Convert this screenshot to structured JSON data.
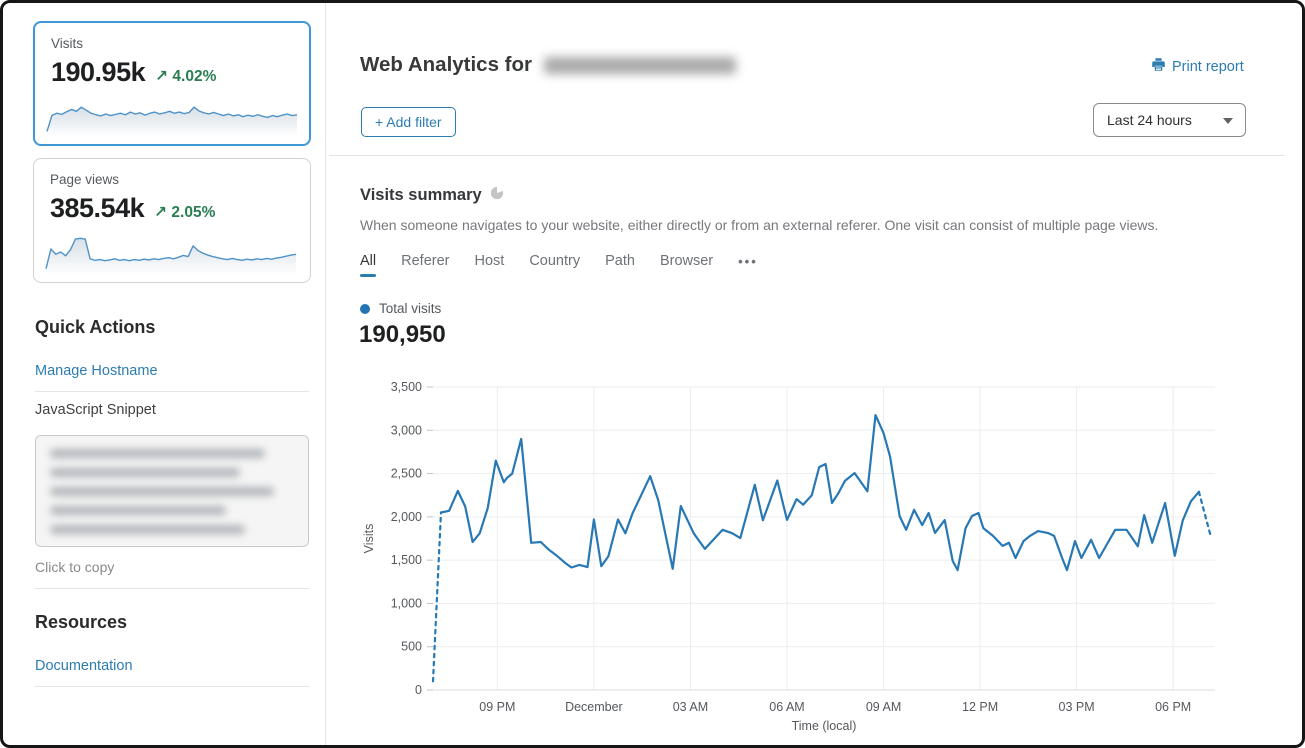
{
  "colors": {
    "accent_blue": "#2c7cb0",
    "selected_card_border": "#3e97d6",
    "chart_line": "#2778b5",
    "positive_green": "#2a7d52",
    "legend_dot": "#2274b5"
  },
  "sidebar": {
    "visits_card": {
      "label": "Visits",
      "value": "190.95k",
      "delta_arrow": "↗",
      "delta": "4.02%",
      "sparkline": [
        4,
        46,
        52,
        49,
        56,
        62,
        57,
        68,
        60,
        52,
        48,
        45,
        50,
        46,
        49,
        52,
        48,
        55,
        50,
        53,
        47,
        52,
        55,
        50,
        53,
        57,
        52,
        55,
        51,
        54,
        68,
        58,
        53,
        50,
        54,
        50,
        46,
        50,
        45,
        48,
        43,
        47,
        44,
        48,
        44,
        41,
        46,
        43,
        47,
        50,
        46,
        48
      ]
    },
    "pageviews_card": {
      "label": "Page views",
      "value": "385.54k",
      "delta_arrow": "↗",
      "delta": "2.05%",
      "sparkline": [
        6,
        58,
        44,
        50,
        40,
        56,
        84,
        86,
        84,
        32,
        28,
        30,
        27,
        29,
        32,
        28,
        30,
        27,
        30,
        28,
        31,
        29,
        32,
        30,
        33,
        35,
        32,
        36,
        41,
        38,
        66,
        54,
        47,
        42,
        38,
        35,
        32,
        30,
        33,
        30,
        28,
        31,
        29,
        32,
        30,
        33,
        31,
        34,
        36,
        39,
        42,
        44
      ]
    },
    "quick_actions_title": "Quick Actions",
    "manage_hostname_link": "Manage Hostname",
    "snippet_label": "JavaScript Snippet",
    "click_to_copy": "Click to copy",
    "resources_title": "Resources",
    "documentation_link": "Documentation"
  },
  "header": {
    "title": "Web Analytics for",
    "print_report_label": "Print report",
    "add_filter_label": "+ Add filter",
    "time_range_value": "Last 24 hours"
  },
  "summary": {
    "title": "Visits summary",
    "description": "When someone navigates to your website, either directly or from an external referer. One visit can consist of multiple page views.",
    "tabs": [
      "All",
      "Referer",
      "Host",
      "Country",
      "Path",
      "Browser"
    ],
    "active_tab": "All",
    "overflow_tabs_label": "•••",
    "legend_label": "Total visits",
    "total_value": "190,950"
  },
  "chart_data": {
    "type": "line",
    "title": "Visits summary",
    "xlabel": "Time (local)",
    "ylabel": "Visits",
    "ylim": [
      0,
      3500
    ],
    "y_tick_step": 500,
    "grid": true,
    "x_unit": "hours_from_chart_start",
    "x_range_hours": [
      0,
      24.3
    ],
    "x_ticks": [
      {
        "t": 2,
        "label": "09 PM"
      },
      {
        "t": 5,
        "label": "December"
      },
      {
        "t": 8,
        "label": "03 AM"
      },
      {
        "t": 11,
        "label": "06 AM"
      },
      {
        "t": 14,
        "label": "09 AM"
      },
      {
        "t": 17,
        "label": "12 PM"
      },
      {
        "t": 20,
        "label": "03 PM"
      },
      {
        "t": 23,
        "label": "06 PM"
      }
    ],
    "series": [
      {
        "name": "Total visits",
        "color": "#2778b5",
        "dashed_first_segment": true,
        "dashed_last_segment": true,
        "points": [
          [
            0.0,
            100
          ],
          [
            0.25,
            2050
          ],
          [
            0.5,
            2070
          ],
          [
            0.77,
            2300
          ],
          [
            1.0,
            2120
          ],
          [
            1.23,
            1710
          ],
          [
            1.45,
            1810
          ],
          [
            1.7,
            2100
          ],
          [
            1.95,
            2650
          ],
          [
            2.2,
            2400
          ],
          [
            2.3,
            2450
          ],
          [
            2.46,
            2500
          ],
          [
            2.74,
            2900
          ],
          [
            3.05,
            1700
          ],
          [
            3.35,
            1710
          ],
          [
            3.6,
            1620
          ],
          [
            3.85,
            1550
          ],
          [
            4.1,
            1470
          ],
          [
            4.3,
            1415
          ],
          [
            4.55,
            1445
          ],
          [
            4.8,
            1420
          ],
          [
            5.0,
            1970
          ],
          [
            5.23,
            1430
          ],
          [
            5.45,
            1545
          ],
          [
            5.75,
            1970
          ],
          [
            5.98,
            1810
          ],
          [
            6.2,
            2040
          ],
          [
            6.75,
            2470
          ],
          [
            7.0,
            2190
          ],
          [
            7.45,
            1400
          ],
          [
            7.7,
            2125
          ],
          [
            8.1,
            1810
          ],
          [
            8.45,
            1630
          ],
          [
            9.0,
            1850
          ],
          [
            9.3,
            1810
          ],
          [
            9.55,
            1755
          ],
          [
            10.0,
            2370
          ],
          [
            10.25,
            1960
          ],
          [
            10.7,
            2420
          ],
          [
            11.0,
            1965
          ],
          [
            11.3,
            2205
          ],
          [
            11.5,
            2140
          ],
          [
            11.77,
            2250
          ],
          [
            12.0,
            2575
          ],
          [
            12.2,
            2610
          ],
          [
            12.4,
            2160
          ],
          [
            12.6,
            2275
          ],
          [
            12.8,
            2415
          ],
          [
            13.1,
            2505
          ],
          [
            13.5,
            2295
          ],
          [
            13.75,
            3175
          ],
          [
            14.0,
            2970
          ],
          [
            14.2,
            2700
          ],
          [
            14.5,
            2010
          ],
          [
            14.7,
            1850
          ],
          [
            14.95,
            2080
          ],
          [
            15.2,
            1905
          ],
          [
            15.4,
            2045
          ],
          [
            15.6,
            1815
          ],
          [
            15.9,
            1963
          ],
          [
            16.15,
            1490
          ],
          [
            16.3,
            1385
          ],
          [
            16.55,
            1870
          ],
          [
            16.75,
            2010
          ],
          [
            16.95,
            2045
          ],
          [
            17.1,
            1870
          ],
          [
            17.4,
            1780
          ],
          [
            17.7,
            1665
          ],
          [
            17.9,
            1700
          ],
          [
            18.1,
            1525
          ],
          [
            18.35,
            1720
          ],
          [
            18.55,
            1780
          ],
          [
            18.8,
            1835
          ],
          [
            19.1,
            1815
          ],
          [
            19.3,
            1780
          ],
          [
            19.55,
            1525
          ],
          [
            19.7,
            1385
          ],
          [
            19.95,
            1720
          ],
          [
            20.15,
            1525
          ],
          [
            20.45,
            1735
          ],
          [
            20.7,
            1525
          ],
          [
            21.2,
            1850
          ],
          [
            21.55,
            1850
          ],
          [
            21.9,
            1660
          ],
          [
            22.1,
            2020
          ],
          [
            22.35,
            1700
          ],
          [
            22.75,
            2160
          ],
          [
            23.05,
            1550
          ],
          [
            23.3,
            1960
          ],
          [
            23.55,
            2180
          ],
          [
            23.8,
            2290
          ],
          [
            24.15,
            1800
          ]
        ]
      }
    ]
  }
}
